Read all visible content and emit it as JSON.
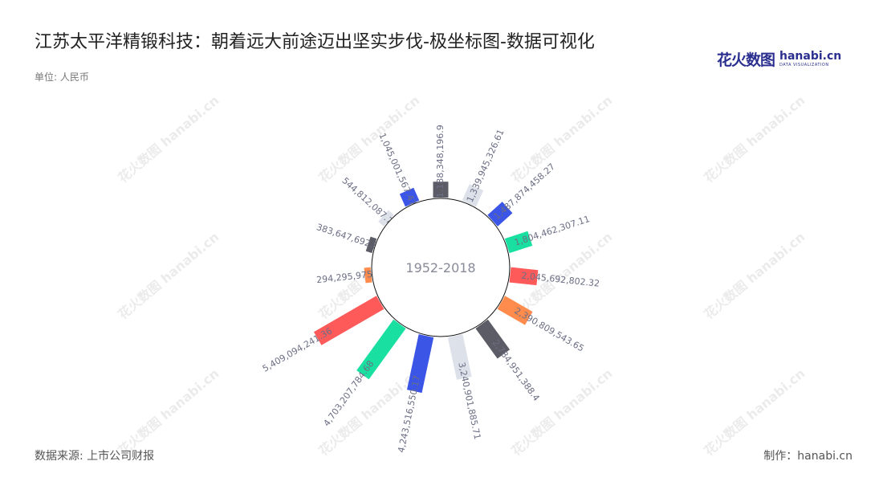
{
  "header": {
    "title": "江苏太平洋精锻科技：朝着远大前途迈出坚实步伐-极坐标图-数据可视化",
    "unit": "单位: 人民币"
  },
  "logo": {
    "cn": "花火数图",
    "en": "hanabi.cn",
    "sub": "DATA VISUALIZATION"
  },
  "footer": {
    "source": "数据来源: 上市公司财报",
    "maker": "制作：hanabi.cn"
  },
  "chart_data": {
    "type": "bar",
    "polar": true,
    "center_label": "1952-2018",
    "values": [
      1188348196.9,
      1339945326.61,
      1487874458.27,
      1804462307.11,
      2045692802.32,
      2390809543.65,
      2784951388.4,
      3240901885.71,
      4243516550.17,
      4703207784.68,
      5409094241.36,
      294295975.1,
      383647692.88,
      544812087.74,
      1045001567.47
    ],
    "labels": [
      "1,188,348,196.9",
      "1,339,945,326.61",
      "1,487,874,458.27",
      "1,804,462,307.11",
      "2,045,692,802.32",
      "2,390,809,543.65",
      "2,784,951,388.4",
      "3,240,901,885.71",
      "4,243,516,550.17",
      "4,703,207,784.68",
      "5,409,094,241.36",
      "294,295,975.1",
      "383,647,692.88",
      "544,812,087.74",
      "1,045,001,567.47"
    ],
    "colors": [
      "#5b5c66",
      "#dde1ea",
      "#3b55e6",
      "#19e0a0",
      "#ff5a5a",
      "#ff8c4d"
    ]
  },
  "watermark": {
    "cn": "花火数图",
    "en": "hanabi.cn"
  }
}
